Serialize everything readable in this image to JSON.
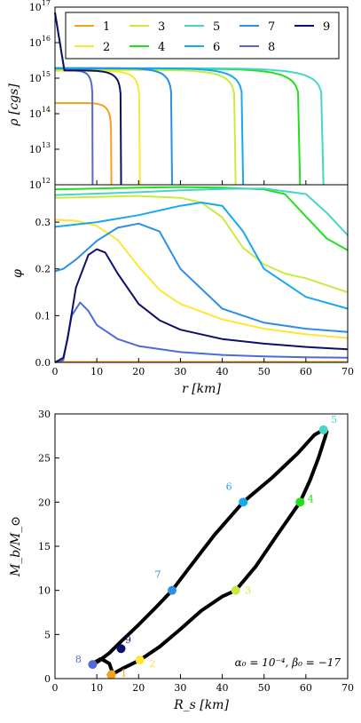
{
  "colors": {
    "1": "#f5a11d",
    "2": "#ffe534",
    "3": "#c8ec3e",
    "4": "#22e01d",
    "5": "#46d5c8",
    "6": "#18a8f0",
    "7": "#2c8ee6",
    "8": "#4f6ad8",
    "9": "#0c0f6b"
  },
  "chart_data": [
    {
      "type": "line",
      "panel": "density",
      "ylabel": "ρ [cgs]",
      "yscale": "log",
      "xlim": [
        0,
        70
      ],
      "ylim": [
        1000000000000.0,
        1e+17
      ],
      "yticks": [
        "10^12",
        "10^13",
        "10^14",
        "10^15",
        "10^16",
        "10^17"
      ],
      "legend": {
        "placement": "top",
        "entries": [
          "1",
          "2",
          "3",
          "4",
          "5",
          "6",
          "7",
          "8",
          "9"
        ]
      },
      "series": [
        {
          "name": "1",
          "center_density": 200000000000000.0,
          "radius_km": 13.5
        },
        {
          "name": "2",
          "center_density": 1600000000000000.0,
          "radius_km": 20.3
        },
        {
          "name": "3",
          "center_density": 1700000000000000.0,
          "radius_km": 43.2
        },
        {
          "name": "4",
          "center_density": 1850000000000000.0,
          "radius_km": 58.6
        },
        {
          "name": "5",
          "center_density": 1900000000000000.0,
          "radius_km": 64.2
        },
        {
          "name": "6",
          "center_density": 1900000000000000.0,
          "radius_km": 45.0
        },
        {
          "name": "7",
          "center_density": 1900000000000000.0,
          "radius_km": 28.0
        },
        {
          "name": "8",
          "center_density": 7e+16,
          "radius_km": 9.0
        },
        {
          "name": "9",
          "center_density": 7e+16,
          "radius_km": 15.8
        }
      ]
    },
    {
      "type": "line",
      "panel": "scalar-field",
      "xlabel": "r [km]",
      "ylabel": "φ",
      "xlim": [
        0,
        70
      ],
      "ylim": [
        0,
        0.38
      ],
      "xticks": [
        0,
        10,
        20,
        30,
        40,
        50,
        60,
        70
      ],
      "yticks": [
        0.0,
        0.1,
        0.2,
        0.3
      ],
      "series": [
        {
          "name": "1",
          "x": [
            0,
            70
          ],
          "y": [
            0.001,
            0.001
          ]
        },
        {
          "name": "2",
          "x": [
            0,
            5,
            10,
            15,
            20,
            25,
            30,
            40,
            50,
            60,
            70
          ],
          "y": [
            0.305,
            0.303,
            0.292,
            0.262,
            0.205,
            0.155,
            0.125,
            0.092,
            0.072,
            0.06,
            0.052
          ]
        },
        {
          "name": "3",
          "x": [
            0,
            10,
            20,
            30,
            35,
            40,
            45,
            50,
            55,
            60,
            70
          ],
          "y": [
            0.352,
            0.354,
            0.356,
            0.352,
            0.342,
            0.31,
            0.245,
            0.21,
            0.19,
            0.18,
            0.15
          ]
        },
        {
          "name": "4",
          "x": [
            0,
            10,
            20,
            30,
            40,
            50,
            55,
            60,
            65,
            70
          ],
          "y": [
            0.37,
            0.372,
            0.374,
            0.375,
            0.374,
            0.37,
            0.36,
            0.312,
            0.265,
            0.24
          ]
        },
        {
          "name": "5",
          "x": [
            0,
            10,
            20,
            30,
            40,
            50,
            60,
            65,
            70
          ],
          "y": [
            0.358,
            0.361,
            0.364,
            0.368,
            0.371,
            0.372,
            0.36,
            0.32,
            0.272
          ]
        },
        {
          "name": "6",
          "x": [
            0,
            10,
            20,
            30,
            35,
            40,
            45,
            50,
            60,
            70
          ],
          "y": [
            0.29,
            0.3,
            0.315,
            0.335,
            0.342,
            0.335,
            0.28,
            0.2,
            0.14,
            0.115
          ]
        },
        {
          "name": "7",
          "x": [
            0,
            2,
            5,
            10,
            15,
            20,
            25,
            30,
            40,
            50,
            60,
            70
          ],
          "y": [
            0.195,
            0.2,
            0.22,
            0.26,
            0.288,
            0.297,
            0.28,
            0.2,
            0.115,
            0.085,
            0.072,
            0.065
          ]
        },
        {
          "name": "8",
          "x": [
            0,
            2,
            4,
            6,
            8,
            10,
            15,
            20,
            30,
            40,
            50,
            60,
            70
          ],
          "y": [
            0.0,
            0.005,
            0.1,
            0.128,
            0.11,
            0.08,
            0.05,
            0.035,
            0.022,
            0.016,
            0.013,
            0.011,
            0.01
          ]
        },
        {
          "name": "9",
          "x": [
            0,
            2,
            3,
            5,
            8,
            10,
            12,
            15,
            20,
            25,
            30,
            40,
            50,
            60,
            70
          ],
          "y": [
            0.0,
            0.01,
            0.05,
            0.16,
            0.23,
            0.242,
            0.235,
            0.19,
            0.125,
            0.09,
            0.07,
            0.05,
            0.04,
            0.033,
            0.028
          ]
        }
      ]
    },
    {
      "type": "scatter",
      "panel": "mass-radius",
      "xlabel": "R_s [km]",
      "ylabel": "M_b/M_⊙",
      "xlim": [
        0,
        70
      ],
      "ylim": [
        0,
        30
      ],
      "xticks": [
        0,
        10,
        20,
        30,
        40,
        50,
        60,
        70
      ],
      "yticks": [
        0,
        5,
        10,
        15,
        20,
        25,
        30
      ],
      "annotation": "α₀ = 10⁻⁴,  β₀ = −17",
      "curve": {
        "x": [
          12.5,
          13.5,
          16,
          20.3,
          25,
          30,
          35,
          40,
          43.2,
          48,
          53,
          58.6,
          61,
          63,
          64.5,
          65,
          64.2,
          62,
          58,
          52,
          45,
          38,
          32,
          28,
          24,
          20,
          16,
          13,
          10.5,
          9.0,
          8.5,
          9.5,
          11,
          13,
          13.6,
          13.0
        ],
        "y": [
          0.3,
          0.45,
          1.1,
          2.1,
          3.6,
          5.6,
          7.7,
          9.3,
          10.0,
          12.7,
          16.2,
          20.0,
          22.5,
          25.0,
          27.2,
          28.0,
          28.2,
          27.6,
          25.5,
          22.8,
          20.0,
          16.2,
          12.5,
          10.0,
          8.0,
          6.1,
          4.3,
          2.9,
          2.0,
          1.6,
          1.45,
          1.85,
          2.25,
          1.7,
          0.9,
          0.3
        ]
      },
      "points": [
        {
          "label": "1",
          "x": 13.5,
          "y": 0.45
        },
        {
          "label": "2",
          "x": 20.3,
          "y": 2.1
        },
        {
          "label": "3",
          "x": 43.2,
          "y": 10.0
        },
        {
          "label": "4",
          "x": 58.6,
          "y": 20.0
        },
        {
          "label": "5",
          "x": 64.2,
          "y": 28.2
        },
        {
          "label": "6",
          "x": 45.0,
          "y": 20.0
        },
        {
          "label": "7",
          "x": 28.0,
          "y": 10.0
        },
        {
          "label": "8",
          "x": 9.0,
          "y": 1.6
        },
        {
          "label": "9",
          "x": 15.8,
          "y": 3.4
        }
      ]
    }
  ]
}
